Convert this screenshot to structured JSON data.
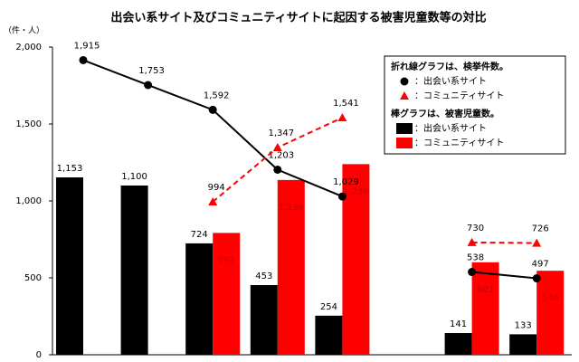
{
  "chart_data": {
    "type": "bar",
    "title": "出会い系サイト及びコミュニティサイトに起因する被害児童数等の対比",
    "y_label": "（件・人）",
    "categories": [
      null,
      null,
      null,
      null,
      null,
      null,
      null,
      null
    ],
    "ylim": [
      0,
      2000
    ],
    "yticks": [
      0,
      500,
      {
        "value": 1000,
        "label": "1,000"
      },
      {
        "value": 1500,
        "label": "1,500"
      },
      {
        "value": 2000,
        "label": "2,000"
      }
    ],
    "legend_line_heading": "折れ線グラフは、検挙件数。",
    "legend_bar_heading": "棒グラフは、被害児童数。",
    "legend": "upper right",
    "series": [
      {
        "name": "：出会い系サイト",
        "type": "bar",
        "color": "#000000",
        "values": [
          1153,
          1100,
          724,
          453,
          254,
          null,
          141,
          133
        ],
        "value_labels": [
          "1,153",
          "1,100",
          "724",
          "453",
          "254",
          null,
          "141",
          "133"
        ]
      },
      {
        "name": "：コミュニティサイト",
        "type": "bar",
        "color": "#ff0000",
        "values": [
          null,
          null,
          792,
          1136,
          1239,
          null,
          601,
          546
        ],
        "value_labels": [
          null,
          null,
          "792",
          "1,136",
          "1,239",
          null,
          "601",
          "546"
        ]
      },
      {
        "name": "：出会い系サイト",
        "type": "line",
        "color": "#000000",
        "marker": "circle",
        "values": [
          1915,
          1753,
          1592,
          1203,
          1029,
          null,
          538,
          497
        ],
        "value_labels": [
          "1,915",
          "1,753",
          "1,592",
          "1,203",
          "1,029",
          null,
          "538",
          "497"
        ]
      },
      {
        "name": "：コミュニティサイト",
        "type": "line",
        "color": "#ff0000",
        "marker": "triangle",
        "dashed": true,
        "values": [
          null,
          null,
          994,
          1347,
          1541,
          null,
          730,
          726
        ],
        "value_labels": [
          null,
          null,
          "994",
          "1,347",
          "1,541",
          null,
          "730",
          "726"
        ]
      }
    ]
  }
}
